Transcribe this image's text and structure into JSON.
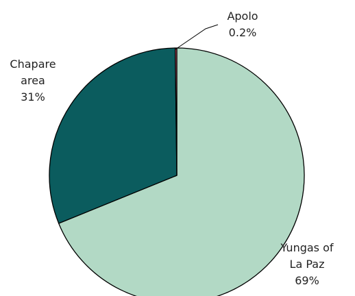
{
  "chart_data": {
    "type": "pie",
    "categories": [
      "Yungas of La Paz",
      "Chapare area",
      "Apolo"
    ],
    "values": [
      69,
      31,
      0.2
    ],
    "value_labels": [
      "69%",
      "31%",
      "0.2%"
    ],
    "colors": [
      "#b2d9c5",
      "#0b5c5e",
      "#d9627a"
    ]
  }
}
